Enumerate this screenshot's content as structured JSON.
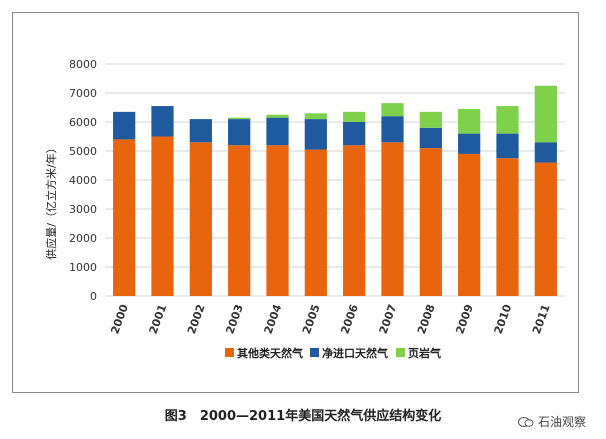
{
  "chart_data": {
    "type": "bar",
    "stacked": true,
    "title": "",
    "xlabel": "",
    "ylabel": "供应量/（亿立方米/年）",
    "ylim": [
      0,
      8000
    ],
    "yticks": [
      0,
      1000,
      2000,
      3000,
      4000,
      5000,
      6000,
      7000,
      8000
    ],
    "grid": true,
    "legend_position": "bottom",
    "categories": [
      "2000",
      "2001",
      "2002",
      "2003",
      "2004",
      "2005",
      "2006",
      "2007",
      "2008",
      "2009",
      "2010",
      "2011"
    ],
    "series": [
      {
        "name": "其他类天然气",
        "color": "#e8650e",
        "values": [
          5400,
          5500,
          5300,
          5200,
          5200,
          5050,
          5200,
          5300,
          5100,
          4900,
          4750,
          4600
        ]
      },
      {
        "name": "净进口天然气",
        "color": "#1f5a9e",
        "values": [
          950,
          1050,
          800,
          900,
          950,
          1050,
          800,
          900,
          700,
          700,
          850,
          700
        ]
      },
      {
        "name": "页岩气",
        "color": "#7fd04b",
        "values": [
          0,
          0,
          0,
          50,
          100,
          200,
          350,
          450,
          550,
          850,
          950,
          1950
        ]
      }
    ]
  },
  "caption": "图3　2000—2011年美国天然气供应结构变化",
  "watermark": {
    "text": "石油观察"
  }
}
